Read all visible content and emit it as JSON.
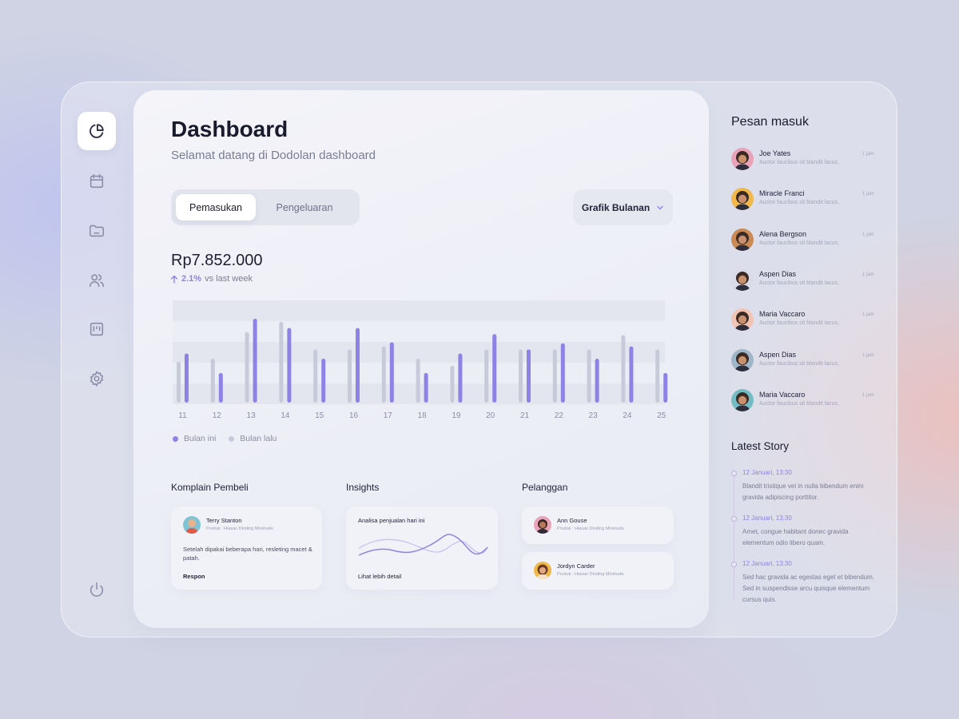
{
  "sidebar": {
    "items": [
      {
        "icon": "pie-chart-icon",
        "active": true
      },
      {
        "icon": "calendar-icon"
      },
      {
        "icon": "folder-icon"
      },
      {
        "icon": "users-icon"
      },
      {
        "icon": "board-icon"
      },
      {
        "icon": "gear-icon"
      }
    ],
    "logout_icon": "power-icon"
  },
  "header": {
    "title": "Dashboard",
    "subtitle": "Selamat datang di Dodolan dashboard"
  },
  "tabs": [
    {
      "label": "Pemasukan",
      "active": true
    },
    {
      "label": "Pengeluaran",
      "active": false
    }
  ],
  "dropdown": {
    "label": "Grafik Bulanan",
    "icon": "chevron-down-icon"
  },
  "summary": {
    "amount": "Rp7.852.000",
    "change_pct": "2.1%",
    "change_text": "vs last week",
    "arrow_icon": "arrow-up-icon"
  },
  "legend": {
    "this_month": "Bulan ini",
    "last_month": "Bulan lalu"
  },
  "chart_data": {
    "type": "bar",
    "categories": [
      "11",
      "12",
      "13",
      "14",
      "15",
      "16",
      "17",
      "18",
      "19",
      "20",
      "21",
      "22",
      "23",
      "24",
      "25"
    ],
    "series": [
      {
        "name": "Bulan lalu",
        "color": "#c7cad9",
        "values": [
          40,
          43,
          69,
          79,
          52,
          52,
          55,
          43,
          36,
          52,
          52,
          52,
          52,
          66,
          52
        ]
      },
      {
        "name": "Bulan ini",
        "color": "#8f82e6",
        "values": [
          48,
          29,
          82,
          73,
          43,
          73,
          59,
          29,
          48,
          67,
          52,
          58,
          43,
          55,
          29
        ]
      }
    ],
    "ylim": [
      0,
      100
    ],
    "grid": "horizontal bands",
    "legend_position": "bottom-left"
  },
  "sections": {
    "complaints": {
      "title": "Komplain Pembeli",
      "name": "Terry Stanton",
      "product": "Produk : Hiasan Dinding Minimalis",
      "message": "Setelah dipakai beberapa hari, resleting macet & patah.",
      "action": "Respon"
    },
    "insights": {
      "title": "Insights",
      "heading": "Analisa penjualan hari ini",
      "link": "Lihat lebih detail"
    },
    "customers": {
      "title": "Pelanggan",
      "items": [
        {
          "name": "Ann Gouse",
          "product": "Produk : Hiasan Dinding Minimalis"
        },
        {
          "name": "Jordyn Carder",
          "product": "Produk : Hiasan Dinding Minimalis"
        }
      ]
    }
  },
  "messages": {
    "title": "Pesan masuk",
    "items": [
      {
        "name": "Joe Yates",
        "text": "Auctor faucibus sit blandit lacus,",
        "time": "1 jam",
        "avatar_color": "#e9a3b8"
      },
      {
        "name": "Miracle Franci",
        "text": "Auctor faucibus sit blandit lacus,",
        "time": "1 jam",
        "avatar_color": "#f0b84a"
      },
      {
        "name": "Alena Bergson",
        "text": "Auctor faucibus sit blandit lacus,",
        "time": "1 jam",
        "avatar_color": "#c98a55"
      },
      {
        "name": "Aspen Dias",
        "text": "Auctor faucibus sit blandit lacus,",
        "time": "1 jam",
        "avatar_color": "#d9dbe6"
      },
      {
        "name": "Maria Vaccaro",
        "text": "Auctor faucibus sit blandit lacus,",
        "time": "1 jam",
        "avatar_color": "#f2c4b5"
      },
      {
        "name": "Aspen Dias",
        "text": "Auctor faucibus sit blandit lacus,",
        "time": "1 jam",
        "avatar_color": "#9fb6c8"
      },
      {
        "name": "Maria Vaccaro",
        "text": "Auctor faucibus sit blandit lacus,",
        "time": "1 jam",
        "avatar_color": "#74bcc4"
      }
    ]
  },
  "stories": {
    "title": "Latest Story",
    "items": [
      {
        "date": "12 Januari, 13:30",
        "text": "Blandit tristique vel in nulla bibendum enim gravida adipiscing porttitor."
      },
      {
        "date": "12 Januari, 13:30",
        "text": "Amet, congue habitant donec gravida elementum odio libero quam."
      },
      {
        "date": "12 Januari, 13:30",
        "text": "Sed hac gravida ac egestas eget et bibendum. Sed in suspendisse arcu quisque elementum cursus quis."
      }
    ]
  },
  "colors": {
    "accent": "#8f82e6",
    "bar_previous": "#c7cad9",
    "text_dark": "#191a2c",
    "text_muted": "#7a7d92"
  }
}
